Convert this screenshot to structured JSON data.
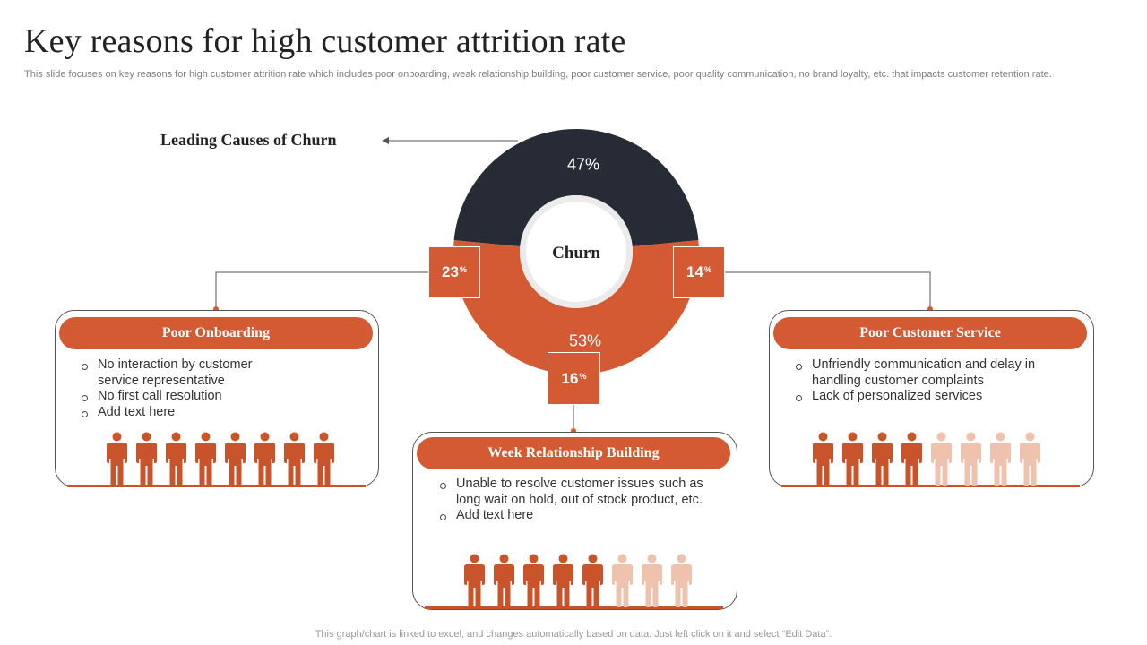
{
  "title": "Key reasons for high customer attrition rate",
  "subtitle": "This slide focuses on key reasons for high customer attrition rate which includes poor onboarding, weak relationship building, poor customer service, poor quality communication, no brand loyalty,  etc. that impacts customer retention rate.",
  "leading_label": "Leading Causes of Churn",
  "center_label": "Churn",
  "colors": {
    "accent": "#d35a32",
    "dark": "#272b35",
    "light_person": "#efc2ad",
    "person": "#c9532a"
  },
  "chart_data": {
    "type": "pie",
    "title": "",
    "slices": [
      {
        "label": "47%",
        "value": 47,
        "color": "#272b35"
      },
      {
        "label": "53%",
        "value": 53,
        "color": "#d35a32"
      }
    ]
  },
  "breakdown": [
    {
      "label": "23",
      "unit": "%"
    },
    {
      "label": "14",
      "unit": "%"
    },
    {
      "label": "16",
      "unit": "%"
    }
  ],
  "cards": [
    {
      "heading": "Poor Onboarding",
      "bullets": [
        "No interaction by customer service representative",
        "No first call resolution",
        "Add text here"
      ],
      "people_filled": 8,
      "people_total": 8
    },
    {
      "heading": "Week Relationship Building",
      "bullets": [
        "Unable to resolve customer issues such as long wait on hold, out of stock product, etc.",
        "Add text here"
      ],
      "people_filled": 5,
      "people_total": 8
    },
    {
      "heading": "Poor Customer Service",
      "bullets": [
        "Unfriendly communication and delay in handling customer complaints",
        "Lack of personalized services"
      ],
      "people_filled": 4,
      "people_total": 8
    }
  ],
  "footer": "This graph/chart is linked to excel,  and changes automatically based on data. Just left click on it and select “Edit Data”."
}
